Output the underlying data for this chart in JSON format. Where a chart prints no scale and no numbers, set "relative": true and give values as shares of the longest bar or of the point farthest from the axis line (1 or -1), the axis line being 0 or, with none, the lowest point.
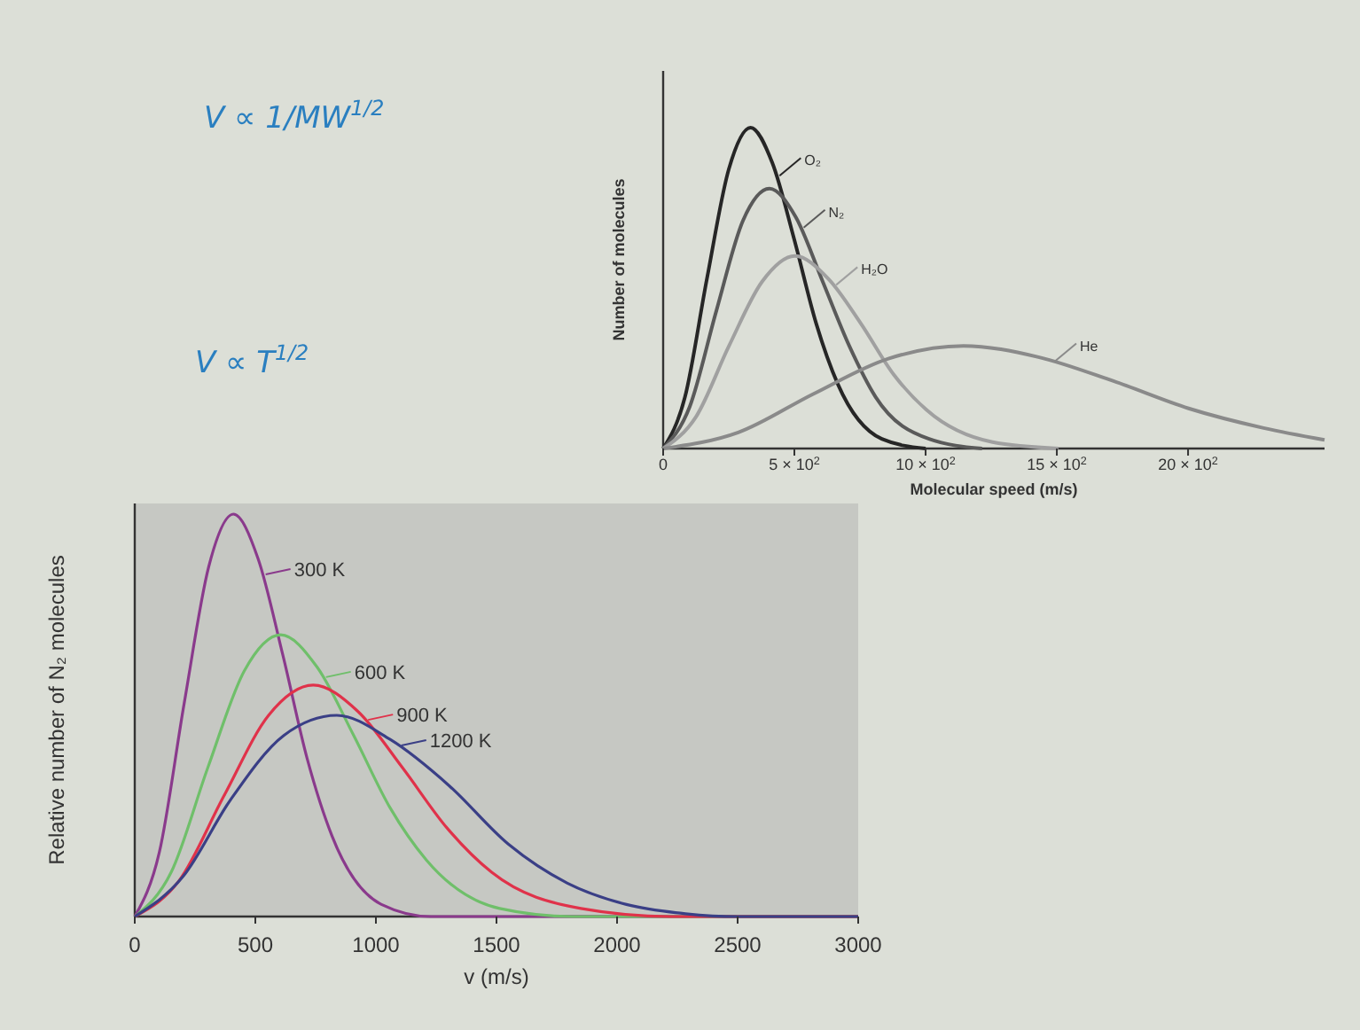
{
  "chart_data": [
    {
      "type": "line",
      "relative": true,
      "xlabel": "Molecular speed (m/s)",
      "ylabel": "Number of molecules",
      "xlim": [
        0,
        2520
      ],
      "xticks": [
        0,
        {
          "value": 500,
          "label": "5 × 10$^{2}$"
        },
        {
          "value": 1000,
          "label": "10 × 10$^{2}$"
        },
        {
          "value": 1500,
          "label": "15 × 10$^{2}$"
        },
        {
          "value": 2000,
          "label": "20 × 10$^{2}$"
        }
      ],
      "grid": false,
      "legend": "top",
      "marker": "none",
      "line_style": "solid",
      "series": [
        {
          "name": "O₂",
          "color": "#262626",
          "x": [
            0,
            83,
            167,
            250,
            333,
            416,
            500,
            583,
            666,
            833,
            1000
          ],
          "values": [
            0,
            0.16,
            0.53,
            0.87,
            1,
            0.89,
            0.65,
            0.39,
            0.2,
            0.03,
            0
          ]
        },
        {
          "name": "N₂",
          "color": "#5a5a5a",
          "x": [
            0,
            101,
            203,
            304,
            405,
            506,
            608,
            709,
            810,
            1013,
            1215
          ],
          "values": [
            0,
            0.13,
            0.43,
            0.71,
            0.81,
            0.72,
            0.52,
            0.32,
            0.16,
            0.03,
            0
          ]
        },
        {
          "name": "H₂O",
          "color": "#a0a0a0",
          "x": [
            0,
            126,
            251,
            377,
            502,
            628,
            753,
            879,
            1004,
            1255,
            1506
          ],
          "values": [
            0,
            0.1,
            0.32,
            0.52,
            0.6,
            0.53,
            0.39,
            0.23,
            0.12,
            0.02,
            0
          ]
        },
        {
          "name": "He",
          "color": "#8a8a8a",
          "x": [
            0,
            286,
            572,
            858,
            1144,
            1430,
            1716,
            2002,
            2288,
            2520
          ],
          "values": [
            0,
            0.05,
            0.17,
            0.28,
            0.32,
            0.285,
            0.21,
            0.125,
            0.064,
            0.027
          ]
        }
      ],
      "annotations": [
        "V ∝ 1/MW$^{1/2}$",
        "V ∝ T$^{1/2}$"
      ]
    },
    {
      "type": "line",
      "relative": true,
      "xlabel": "v (m/s)",
      "ylabel": "Relative number of N₂ molecules",
      "xlim": [
        0,
        3000
      ],
      "xticks": [
        0,
        500,
        1000,
        1500,
        2000,
        2500,
        3000
      ],
      "grid": false,
      "legend": "top left",
      "marker": "none",
      "line_style": "solid",
      "series": [
        {
          "name": "300 K",
          "color": "#8a3a8c",
          "x": [
            0,
            102,
            205,
            307,
            409,
            511,
            614,
            716,
            818,
            1023,
            1227,
            3000
          ],
          "values": [
            0,
            0.16,
            0.53,
            0.87,
            1,
            0.89,
            0.65,
            0.39,
            0.2,
            0.03,
            0,
            0
          ]
        },
        {
          "name": "600 K",
          "color": "#6fbf6a",
          "x": [
            0,
            151,
            303,
            454,
            605,
            756,
            908,
            1059,
            1210,
            1513,
            1815,
            3000
          ],
          "values": [
            0,
            0.11,
            0.37,
            0.61,
            0.7,
            0.62,
            0.45,
            0.27,
            0.14,
            0.02,
            0,
            0
          ]
        },
        {
          "name": "900 K",
          "color": "#e0324a",
          "x": [
            0,
            185,
            370,
            555,
            740,
            925,
            1110,
            1295,
            1480,
            1850,
            2220,
            3000
          ],
          "values": [
            0,
            0.09,
            0.3,
            0.5,
            0.575,
            0.51,
            0.37,
            0.22,
            0.11,
            0.02,
            0,
            0
          ]
        },
        {
          "name": "1200 K",
          "color": "#3a3f86",
          "x": [
            0,
            201,
            397,
            618,
            838,
            1059,
            1304,
            1549,
            1794,
            2039,
            2284,
            2500,
            3000
          ],
          "values": [
            0,
            0.1,
            0.29,
            0.45,
            0.5,
            0.44,
            0.325,
            0.18,
            0.083,
            0.03,
            0.007,
            0,
            0
          ]
        }
      ]
    }
  ]
}
